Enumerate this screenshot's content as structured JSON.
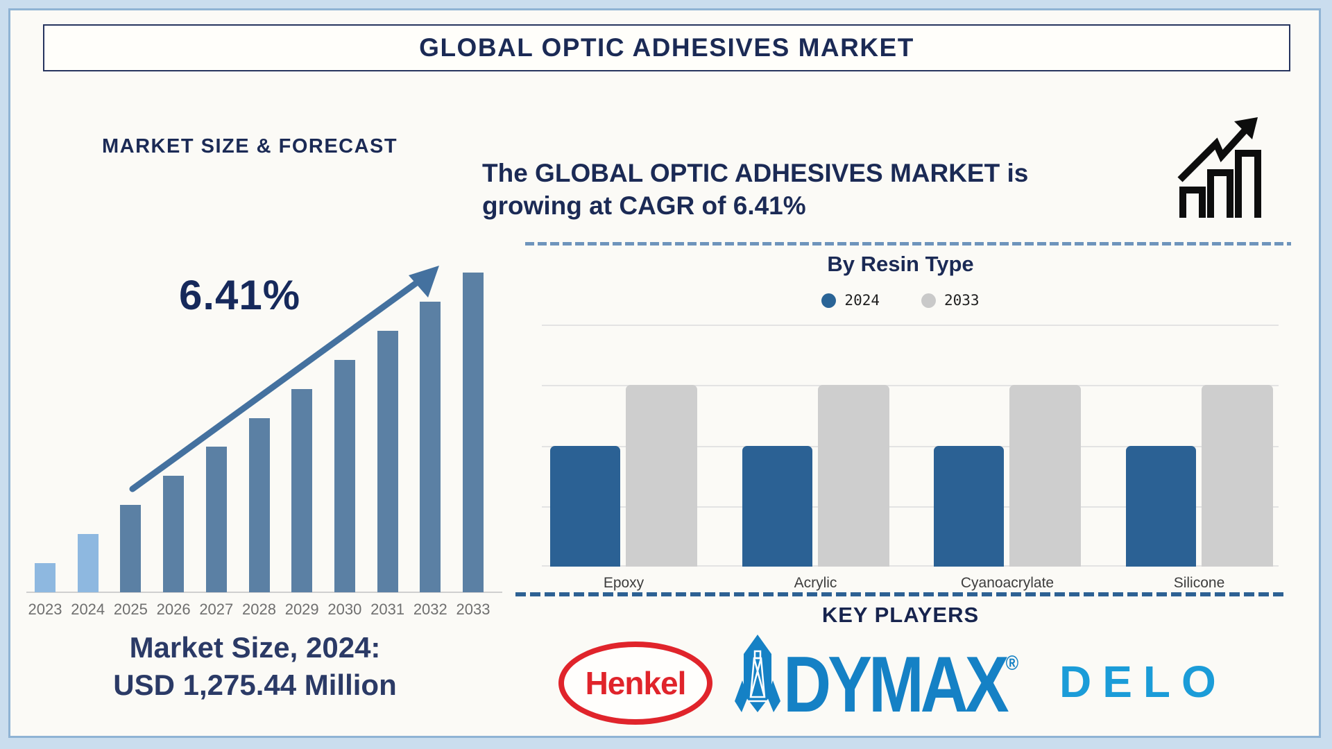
{
  "page": {
    "title": "GLOBAL OPTIC ADHESIVES MARKET"
  },
  "left_panel": {
    "heading": "MARKET SIZE & FORECAST",
    "cagr_callout": "6.41%",
    "market_size_line1": "Market Size, 2024:",
    "market_size_line2": "USD 1,275.44 Million"
  },
  "right_panel": {
    "headline_line1": "The GLOBAL OPTIC ADHESIVES MARKET is",
    "headline_line2": "growing at CAGR of 6.41%",
    "resin_title": "By Resin Type",
    "legend": [
      {
        "label": "2024",
        "color": "#2A6496"
      },
      {
        "label": "2033",
        "color": "#C9C9C9"
      }
    ],
    "key_players_heading": "KEY PLAYERS",
    "key_players": [
      "Henkel",
      "DYMAX",
      "DELO"
    ]
  },
  "colors": {
    "navy_heading": "#1B2A55",
    "forecast_bar": "#5B80A4",
    "forecast_bar_highlight": "#8EB8E0",
    "trend_arrow": "#44719F",
    "dashed_divider_light": "#6E94BC",
    "dashed_divider_dark": "#2D6193",
    "resin_2024_bar": "#2B6194",
    "resin_2033_bar": "#CECECE",
    "henkel_red": "#E0242B",
    "dymax_blue": "#1581C5",
    "delo_blue": "#1B9CD8"
  },
  "chart_data": [
    {
      "id": "forecast",
      "type": "bar",
      "title": "MARKET SIZE & FORECAST",
      "categories": [
        "2023",
        "2024",
        "2025",
        "2026",
        "2027",
        "2028",
        "2029",
        "2030",
        "2031",
        "2032",
        "2033"
      ],
      "values": [
        1,
        2,
        3,
        4,
        5,
        6,
        7,
        8,
        9,
        10,
        11
      ],
      "values_note": "relative bar heights, no y-axis shown; linear ramp",
      "annotation_cagr": "6.41%",
      "market_size_2024_usd_million": 1275.44,
      "bar_color": "#5B80A4",
      "highlight_color": "#8EB8E0",
      "highlight_categories": [
        "2023",
        "2024"
      ],
      "xlabel": "",
      "ylabel": "",
      "grid": false
    },
    {
      "id": "by_resin_type",
      "type": "bar",
      "title": "By Resin Type",
      "categories": [
        "Epoxy",
        "Acrylic",
        "Cyanoacrylate",
        "Silicone"
      ],
      "series": [
        {
          "name": "2024",
          "color": "#2B6194",
          "values": [
            50,
            50,
            50,
            50
          ]
        },
        {
          "name": "2033",
          "color": "#CECECE",
          "values": [
            75,
            75,
            75,
            75
          ]
        }
      ],
      "ylim": [
        0,
        100
      ],
      "values_note": "relative units estimated from gridlines (no y-axis labels)",
      "grid": true,
      "legend_position": "top"
    }
  ]
}
